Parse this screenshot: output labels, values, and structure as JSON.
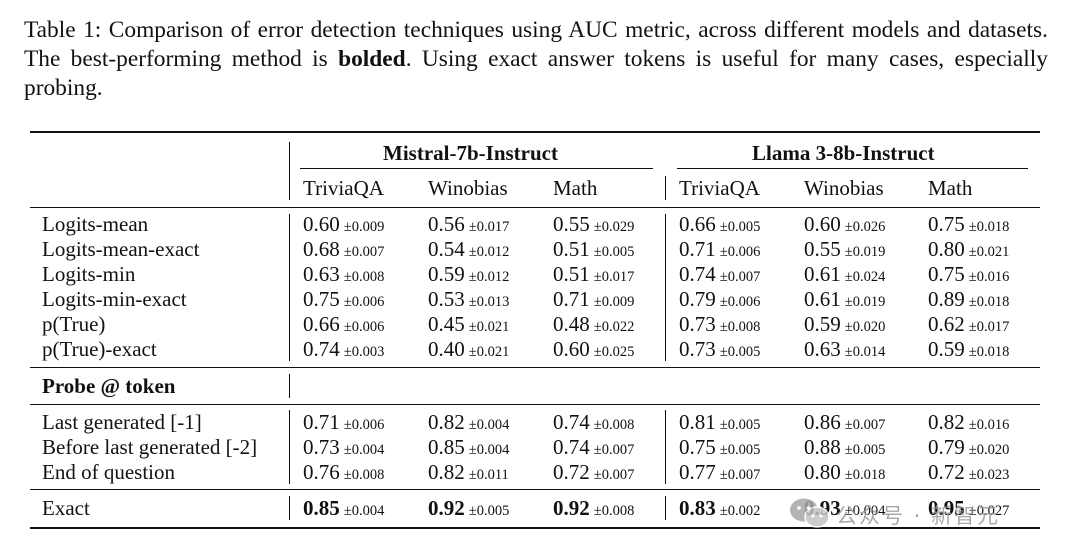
{
  "caption": {
    "part1": "Table 1: Comparison of error detection techniques using AUC metric, across different models and datasets. The best-performing method is ",
    "bold": "bolded",
    "part2": ". Using exact answer tokens is useful for many cases, especially probing."
  },
  "groups": [
    "Mistral-7b-Instruct",
    "Llama 3-8b-Instruct"
  ],
  "datasets": [
    "TriviaQA",
    "Winobias",
    "Math",
    "TriviaQA",
    "Winobias",
    "Math"
  ],
  "section_label": "Probe @ token",
  "rows_a": [
    {
      "label": "Logits-mean",
      "cells": [
        [
          "0.60",
          "±0.009"
        ],
        [
          "0.56",
          "±0.017"
        ],
        [
          "0.55",
          "±0.029"
        ],
        [
          "0.66",
          "±0.005"
        ],
        [
          "0.60",
          "±0.026"
        ],
        [
          "0.75",
          "±0.018"
        ]
      ]
    },
    {
      "label": "Logits-mean-exact",
      "cells": [
        [
          "0.68",
          "±0.007"
        ],
        [
          "0.54",
          "±0.012"
        ],
        [
          "0.51",
          "±0.005"
        ],
        [
          "0.71",
          "±0.006"
        ],
        [
          "0.55",
          "±0.019"
        ],
        [
          "0.80",
          "±0.021"
        ]
      ]
    },
    {
      "label": "Logits-min",
      "cells": [
        [
          "0.63",
          "±0.008"
        ],
        [
          "0.59",
          "±0.012"
        ],
        [
          "0.51",
          "±0.017"
        ],
        [
          "0.74",
          "±0.007"
        ],
        [
          "0.61",
          "±0.024"
        ],
        [
          "0.75",
          "±0.016"
        ]
      ]
    },
    {
      "label": "Logits-min-exact",
      "cells": [
        [
          "0.75",
          "±0.006"
        ],
        [
          "0.53",
          "±0.013"
        ],
        [
          "0.71",
          "±0.009"
        ],
        [
          "0.79",
          "±0.006"
        ],
        [
          "0.61",
          "±0.019"
        ],
        [
          "0.89",
          "±0.018"
        ]
      ]
    },
    {
      "label": "p(True)",
      "cells": [
        [
          "0.66",
          "±0.006"
        ],
        [
          "0.45",
          "±0.021"
        ],
        [
          "0.48",
          "±0.022"
        ],
        [
          "0.73",
          "±0.008"
        ],
        [
          "0.59",
          "±0.020"
        ],
        [
          "0.62",
          "±0.017"
        ]
      ]
    },
    {
      "label": "p(True)-exact",
      "cells": [
        [
          "0.74",
          "±0.003"
        ],
        [
          "0.40",
          "±0.021"
        ],
        [
          "0.60",
          "±0.025"
        ],
        [
          "0.73",
          "±0.005"
        ],
        [
          "0.63",
          "±0.014"
        ],
        [
          "0.59",
          "±0.018"
        ]
      ]
    }
  ],
  "rows_b": [
    {
      "label": "Last generated [-1]",
      "cells": [
        [
          "0.71",
          "±0.006"
        ],
        [
          "0.82",
          "±0.004"
        ],
        [
          "0.74",
          "±0.008"
        ],
        [
          "0.81",
          "±0.005"
        ],
        [
          "0.86",
          "±0.007"
        ],
        [
          "0.82",
          "±0.016"
        ]
      ]
    },
    {
      "label": "Before last generated [-2]",
      "cells": [
        [
          "0.73",
          "±0.004"
        ],
        [
          "0.85",
          "±0.004"
        ],
        [
          "0.74",
          "±0.007"
        ],
        [
          "0.75",
          "±0.005"
        ],
        [
          "0.88",
          "±0.005"
        ],
        [
          "0.79",
          "±0.020"
        ]
      ]
    },
    {
      "label": "End of question",
      "cells": [
        [
          "0.76",
          "±0.008"
        ],
        [
          "0.82",
          "±0.011"
        ],
        [
          "0.72",
          "±0.007"
        ],
        [
          "0.77",
          "±0.007"
        ],
        [
          "0.80",
          "±0.018"
        ],
        [
          "0.72",
          "±0.023"
        ]
      ]
    }
  ],
  "row_exact": {
    "label": "Exact",
    "cells": [
      [
        "0.85",
        "±0.004"
      ],
      [
        "0.92",
        "±0.005"
      ],
      [
        "0.92",
        "±0.008"
      ],
      [
        "0.83",
        "±0.002"
      ],
      [
        "0.93",
        "±0.004"
      ],
      [
        "0.95",
        "±0.027"
      ]
    ]
  },
  "watermark": {
    "logo_icon": "wechat-icon",
    "text": "公众号 · 新智元"
  }
}
